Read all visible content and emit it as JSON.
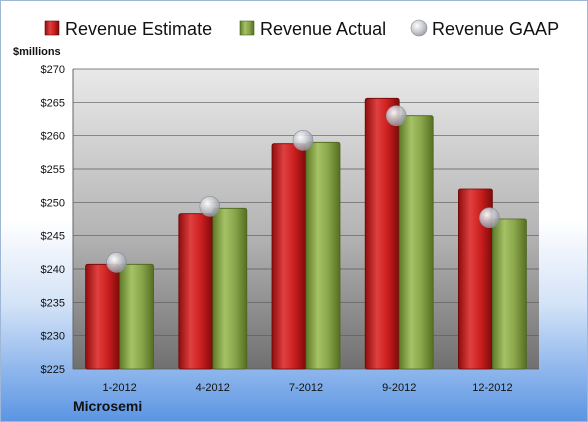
{
  "company": "Microsemi",
  "chart_data": {
    "type": "bar",
    "units_label": "$millions",
    "categories": [
      "1-2012",
      "4-2012",
      "7-2012",
      "9-2012",
      "12-2012"
    ],
    "series": [
      {
        "name": "Revenue Estimate",
        "type": "bar",
        "color": "#cc1f1f",
        "values": [
          240.7,
          248.3,
          258.8,
          265.6,
          252.0
        ]
      },
      {
        "name": "Revenue Actual",
        "type": "bar",
        "color": "#8aa64a",
        "values": [
          240.7,
          249.1,
          259.0,
          263.0,
          247.5
        ]
      },
      {
        "name": "Revenue GAAP",
        "type": "marker",
        "color": "#b8bcc4",
        "values": [
          241.0,
          249.4,
          259.3,
          263.0,
          247.7
        ]
      }
    ],
    "yticks": [
      "$225",
      "$230",
      "$235",
      "$240",
      "$245",
      "$250",
      "$255",
      "$260",
      "$265",
      "$270"
    ],
    "ylim": [
      225,
      270
    ],
    "grid": true,
    "legend_position": "top"
  }
}
